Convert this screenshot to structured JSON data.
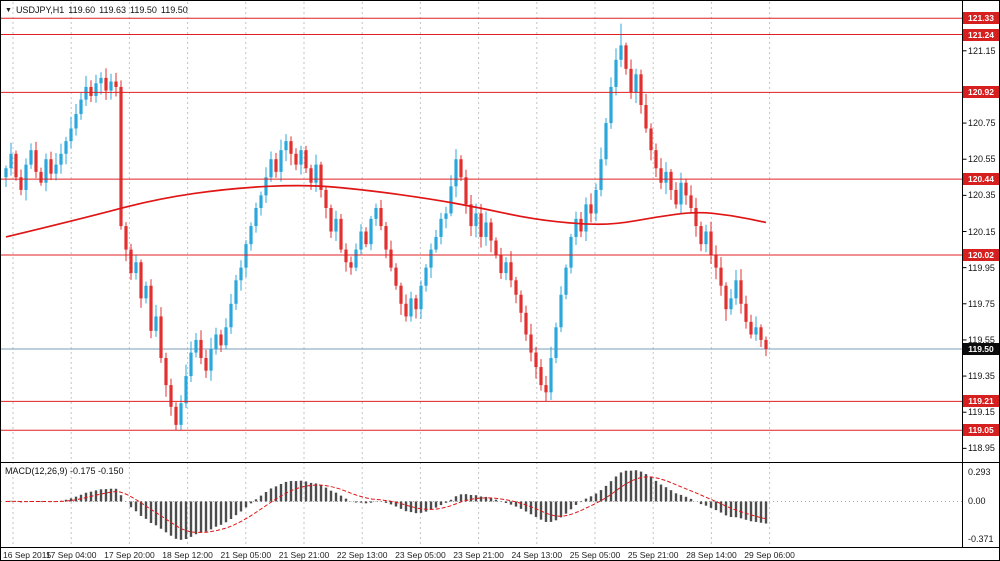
{
  "header": {
    "marker": "▼",
    "symbol_period": "USDJPY,H1",
    "open": "119.60",
    "high": "119.63",
    "low": "119.50",
    "close": "119.50"
  },
  "colors": {
    "bull": "#2ba7dc",
    "bear": "#e03030",
    "ma": "#e01515",
    "level": "#e02020",
    "signal": "#e01515",
    "hist": "#4d4d4d",
    "grid": "#c3c3c3",
    "price_line": "#7a9db8",
    "zero_line": "#aaaaaa",
    "frame": "#000000"
  },
  "chart_data": {
    "type": "candlestick",
    "title": "USDJPY,H1",
    "subtitle_ohlc": "119.60 119.63 119.50 119.50",
    "ylim": [
      118.88,
      121.42
    ],
    "y_ticks": [
      121.15,
      120.75,
      120.55,
      120.35,
      120.15,
      119.95,
      119.75,
      119.55,
      119.35,
      119.15,
      118.95
    ],
    "levels": [
      121.33,
      121.24,
      120.92,
      120.44,
      120.02,
      119.21,
      119.05
    ],
    "current_price": 119.5,
    "x_labels": [
      "16 Sep 2015",
      "17 Sep 04:00",
      "17 Sep 20:00",
      "18 Sep 12:00",
      "21 Sep 05:00",
      "21 Sep 21:00",
      "22 Sep 13:00",
      "23 Sep 05:00",
      "23 Sep 21:00",
      "24 Sep 13:00",
      "25 Sep 05:00",
      "25 Sep 21:00",
      "28 Sep 14:00",
      "29 Sep 06:00"
    ],
    "open_first": 120.45,
    "closes": [
      120.5,
      120.58,
      120.45,
      120.38,
      120.52,
      120.6,
      120.48,
      120.42,
      120.55,
      120.47,
      120.52,
      120.58,
      120.65,
      120.72,
      120.8,
      120.88,
      120.95,
      120.9,
      120.97,
      121.0,
      120.93,
      120.98,
      120.95,
      120.18,
      120.05,
      119.92,
      119.98,
      119.78,
      119.85,
      119.6,
      119.68,
      119.45,
      119.3,
      119.18,
      119.08,
      119.2,
      119.35,
      119.48,
      119.55,
      119.45,
      119.38,
      119.5,
      119.58,
      119.52,
      119.62,
      119.75,
      119.88,
      119.95,
      120.08,
      120.18,
      120.28,
      120.35,
      120.45,
      120.55,
      120.48,
      120.6,
      120.65,
      120.58,
      120.52,
      120.6,
      120.5,
      120.42,
      120.52,
      120.38,
      120.28,
      120.15,
      120.22,
      120.05,
      119.98,
      119.95,
      120.05,
      120.15,
      120.08,
      120.22,
      120.28,
      120.18,
      120.05,
      119.95,
      119.85,
      119.75,
      119.68,
      119.78,
      119.72,
      119.85,
      119.95,
      120.05,
      120.12,
      120.22,
      120.25,
      120.4,
      120.55,
      120.45,
      120.3,
      120.18,
      120.25,
      120.12,
      120.2,
      120.1,
      120.02,
      119.92,
      119.98,
      119.88,
      119.8,
      119.7,
      119.58,
      119.48,
      119.4,
      119.3,
      119.26,
      119.45,
      119.62,
      119.8,
      119.95,
      120.12,
      120.22,
      120.15,
      120.3,
      120.25,
      120.38,
      120.55,
      120.75,
      120.95,
      121.1,
      121.18,
      121.05,
      120.92,
      121.02,
      120.85,
      120.72,
      120.6,
      120.5,
      120.42,
      120.48,
      120.38,
      120.3,
      120.42,
      120.35,
      120.28,
      120.18,
      120.08,
      120.15,
      120.02,
      119.95,
      119.85,
      119.72,
      119.78,
      119.88,
      119.75,
      119.65,
      119.58,
      119.62,
      119.55,
      119.5
    ],
    "wick_overrides": {
      "34": {
        "low": 119.05
      },
      "108": {
        "low": 119.21
      },
      "123": {
        "high": 121.3
      }
    },
    "ma_keypoints": [
      [
        0,
        120.12
      ],
      [
        15,
        120.22
      ],
      [
        30,
        120.33
      ],
      [
        45,
        120.39
      ],
      [
        60,
        120.41
      ],
      [
        72,
        120.38
      ],
      [
        85,
        120.33
      ],
      [
        95,
        120.28
      ],
      [
        105,
        120.22
      ],
      [
        115,
        120.19
      ],
      [
        122,
        120.19
      ],
      [
        130,
        120.23
      ],
      [
        138,
        120.26
      ],
      [
        145,
        120.24
      ],
      [
        152,
        120.2
      ]
    ],
    "macd": {
      "label": "MACD(12,26,9) -0.175 -0.150",
      "params": [
        12,
        26,
        9
      ],
      "current_values": [
        "-0.175",
        "-0.150"
      ],
      "ylim": [
        -0.45,
        0.37
      ],
      "y_ticks": [
        {
          "v": 0.293,
          "label": "0.293"
        },
        {
          "v": 0,
          "label": "0.00"
        },
        {
          "v": -0.371,
          "label": "-0.371"
        }
      ]
    }
  }
}
